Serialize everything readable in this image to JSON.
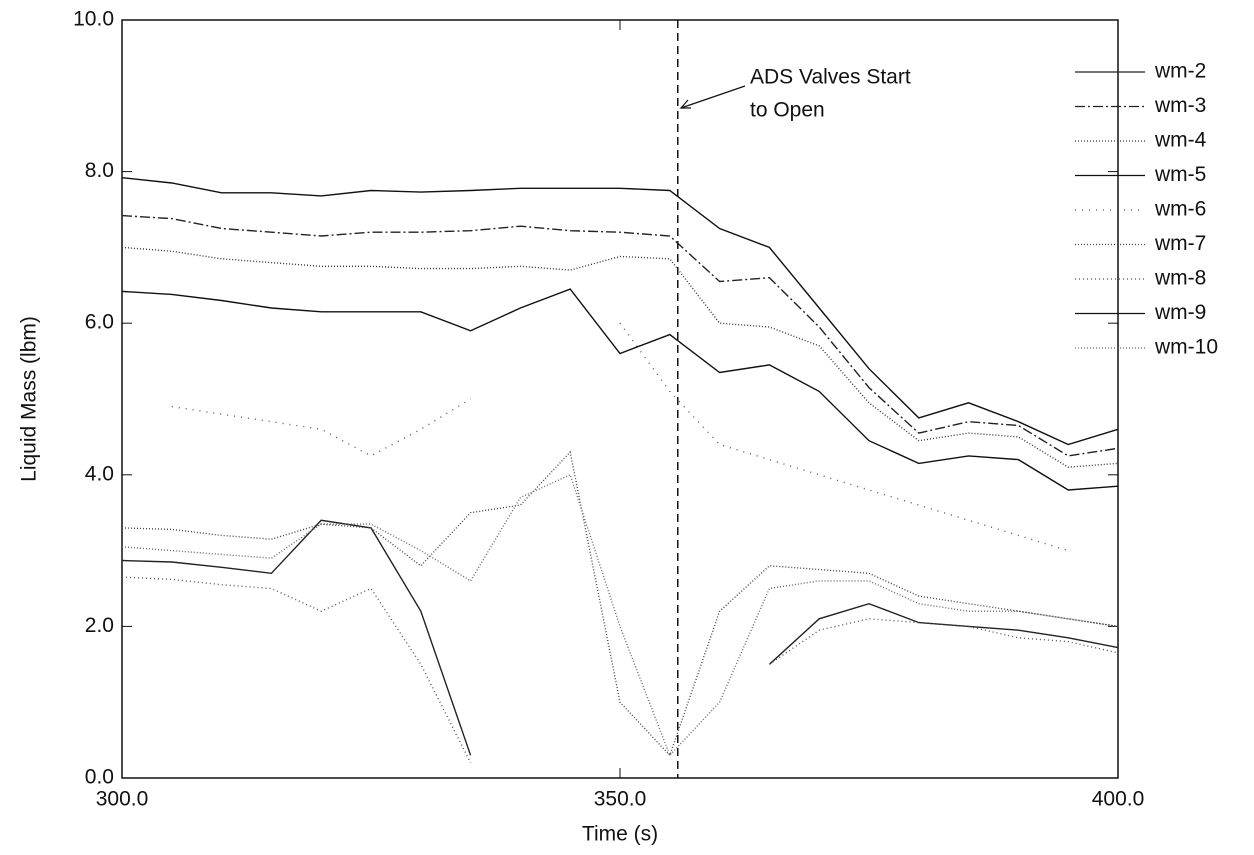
{
  "chart_data": {
    "type": "line",
    "xlabel": "Time (s)",
    "ylabel": "Liquid Mass (lbm)",
    "x": [
      300,
      305,
      310,
      315,
      320,
      325,
      330,
      335,
      340,
      345,
      350,
      355,
      360,
      365,
      370,
      375,
      380,
      385,
      390,
      395,
      400
    ],
    "xlim": [
      300,
      400
    ],
    "xticks": [
      {
        "value": 300,
        "label": "300.0"
      },
      {
        "value": 350,
        "label": "350.0"
      },
      {
        "value": 400,
        "label": "400.0"
      }
    ],
    "ylim": [
      0,
      10
    ],
    "yticks": [
      {
        "value": 0,
        "label": "0.0"
      },
      {
        "value": 2,
        "label": "2.0"
      },
      {
        "value": 4,
        "label": "4.0"
      },
      {
        "value": 6,
        "label": "6.0"
      },
      {
        "value": 8,
        "label": "8.0"
      },
      {
        "value": 10,
        "label": "10.0"
      }
    ],
    "grid": false,
    "legend": "right",
    "annotation": {
      "lines": [
        "ADS Valves Start",
        "to Open"
      ],
      "x": 355.8
    },
    "series": [
      {
        "name": "wm-2",
        "color": "#222",
        "dash": "solid",
        "values": [
          2.87,
          2.85,
          2.78,
          2.7,
          3.4,
          3.3,
          2.2,
          0.3,
          null,
          null,
          null,
          null,
          null,
          1.5,
          2.1,
          2.3,
          2.05,
          2.0,
          1.95,
          1.85,
          1.72
        ]
      },
      {
        "name": "wm-3",
        "color": "#222",
        "dash": "10 3 2 3",
        "values": [
          7.42,
          7.38,
          7.25,
          7.2,
          7.15,
          7.2,
          7.2,
          7.22,
          7.28,
          7.22,
          7.2,
          7.15,
          6.55,
          6.6,
          5.95,
          5.15,
          4.55,
          4.7,
          4.65,
          4.25,
          4.35
        ]
      },
      {
        "name": "wm-4",
        "color": "#333",
        "dash": "1 2",
        "values": [
          7.0,
          6.95,
          6.85,
          6.8,
          6.75,
          6.75,
          6.72,
          6.72,
          6.75,
          6.7,
          6.88,
          6.85,
          6.0,
          5.95,
          5.7,
          4.95,
          4.45,
          4.55,
          4.5,
          4.1,
          4.15
        ]
      },
      {
        "name": "wm-5",
        "color": "#111",
        "dash": "solid",
        "values": [
          7.92,
          7.85,
          7.72,
          7.72,
          7.68,
          7.75,
          7.73,
          7.75,
          7.78,
          7.78,
          7.78,
          7.75,
          7.25,
          7.0,
          6.2,
          5.4,
          4.75,
          4.95,
          4.7,
          4.4,
          4.6
        ]
      },
      {
        "name": "wm-6",
        "color": "#555",
        "dash": "1 6",
        "values": [
          null,
          4.9,
          4.8,
          4.7,
          4.6,
          4.25,
          4.6,
          5.0,
          null,
          null,
          6.0,
          5.1,
          4.4,
          4.2,
          4.0,
          3.8,
          3.6,
          3.4,
          3.2,
          3.0,
          null
        ]
      },
      {
        "name": "wm-7",
        "color": "#444",
        "dash": "1 2",
        "values": [
          3.3,
          3.28,
          3.2,
          3.15,
          3.35,
          3.3,
          2.8,
          3.5,
          3.6,
          4.3,
          1.0,
          0.3,
          2.2,
          2.8,
          2.75,
          2.7,
          2.4,
          2.3,
          2.2,
          2.1,
          2.0
        ]
      },
      {
        "name": "wm-8",
        "color": "#555",
        "dash": "1 3",
        "values": [
          2.65,
          2.62,
          2.55,
          2.5,
          2.2,
          2.5,
          1.5,
          0.2,
          null,
          null,
          null,
          null,
          null,
          1.5,
          1.95,
          2.1,
          2.05,
          2.0,
          1.85,
          1.8,
          1.65
        ]
      },
      {
        "name": "wm-9",
        "color": "#111",
        "dash": "solid",
        "values": [
          6.42,
          6.38,
          6.3,
          6.2,
          6.15,
          6.15,
          6.15,
          5.9,
          6.2,
          6.45,
          5.6,
          5.85,
          5.35,
          5.45,
          5.1,
          4.45,
          4.15,
          4.25,
          4.2,
          3.8,
          3.85
        ]
      },
      {
        "name": "wm-10",
        "color": "#666",
        "dash": "1 2",
        "values": [
          3.05,
          3.0,
          2.95,
          2.9,
          3.35,
          3.35,
          3.0,
          2.6,
          3.7,
          4.0,
          2.0,
          0.3,
          1.0,
          2.5,
          2.6,
          2.6,
          2.3,
          2.2,
          2.2,
          2.1,
          2.0
        ]
      }
    ]
  }
}
